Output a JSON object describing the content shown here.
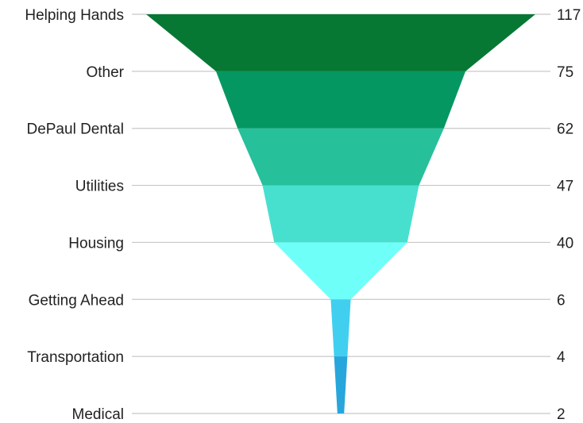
{
  "chart_data": {
    "type": "funnel",
    "categories": [
      "Helping Hands",
      "Other",
      "DePaul Dental",
      "Utilities",
      "Housing",
      "Getting Ahead",
      "Transportation",
      "Medical"
    ],
    "values": [
      117,
      75,
      62,
      47,
      40,
      6,
      4,
      2
    ],
    "colors": [
      "#067834",
      "#059762",
      "#26c09b",
      "#47e0cf",
      "#6ffff9",
      "#41cff0",
      "#27a6dc",
      "#2a8fcf"
    ],
    "grid_color": "#c8c8c8",
    "title": "",
    "xlabel": "",
    "ylabel": ""
  }
}
